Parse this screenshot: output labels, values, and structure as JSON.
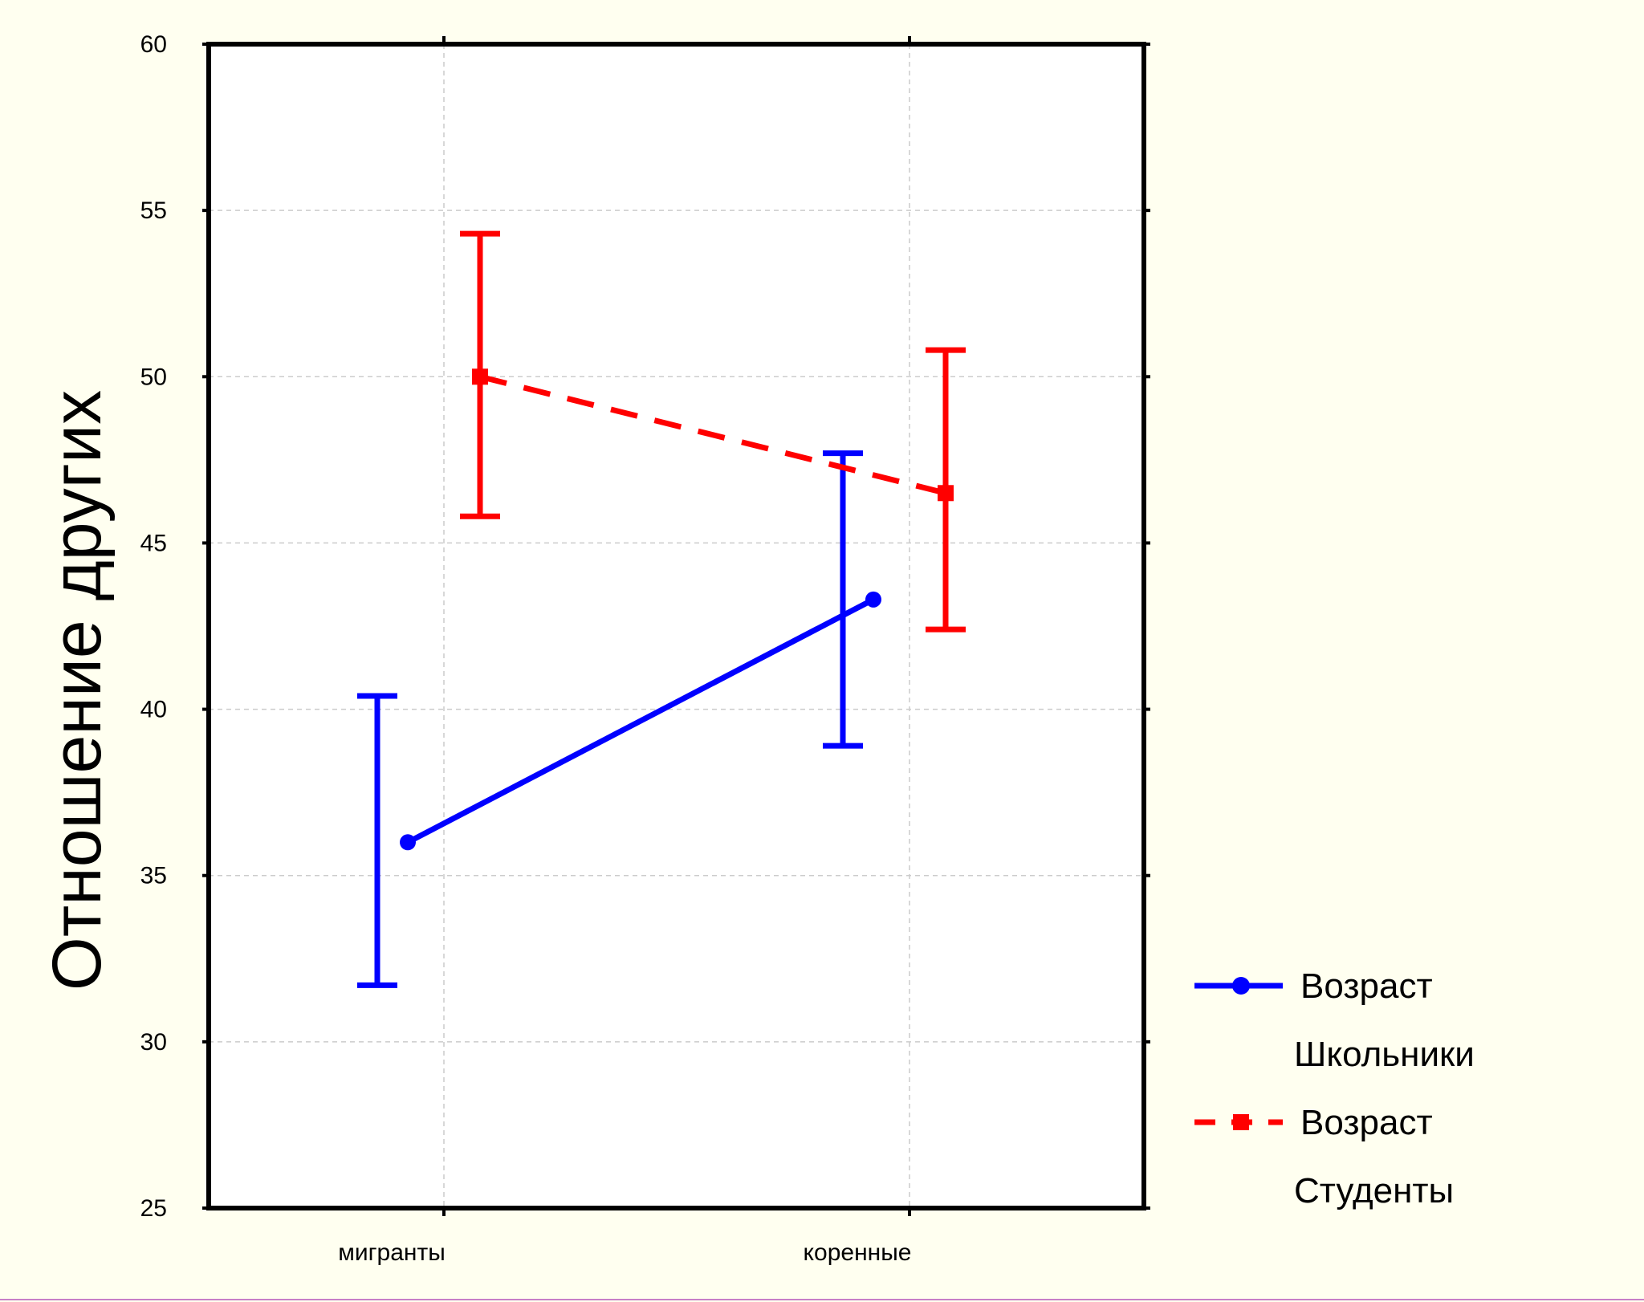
{
  "chart_data": {
    "type": "line",
    "title": "",
    "xlabel": "",
    "ylabel": "Отношение других",
    "categories": [
      "мигранты",
      "коренные"
    ],
    "ylim": [
      25,
      60
    ],
    "yticks": [
      25,
      30,
      35,
      40,
      45,
      50,
      55,
      60
    ],
    "grid": true,
    "legend_position": "right",
    "series": [
      {
        "name": "Возраст",
        "group": "Школьники",
        "color": "#0000ff",
        "line_style": "solid",
        "marker": "circle",
        "values": [
          36.0,
          43.3
        ],
        "ci_lower": [
          31.7,
          38.9
        ],
        "ci_upper": [
          40.4,
          47.7
        ]
      },
      {
        "name": "Возраст",
        "group": "Студенты",
        "color": "#ff0000",
        "line_style": "dashed",
        "marker": "square",
        "values": [
          50.0,
          46.5
        ],
        "ci_lower": [
          45.8,
          42.4
        ],
        "ci_upper": [
          54.3,
          50.8
        ]
      }
    ]
  }
}
